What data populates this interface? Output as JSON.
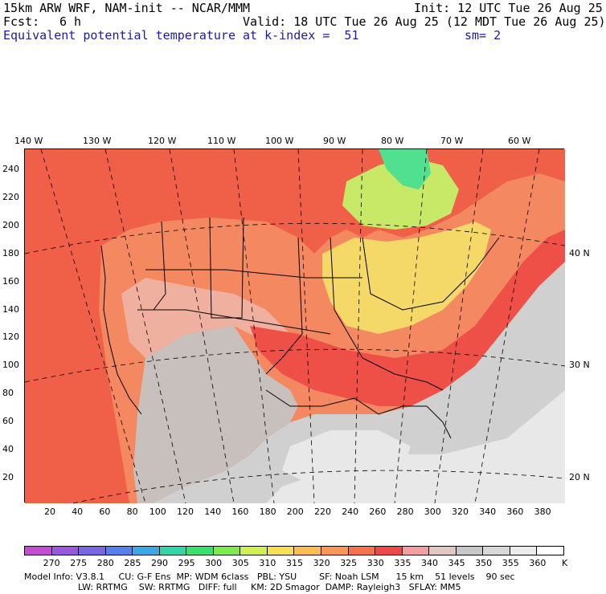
{
  "header": {
    "model_line": "15km ARW WRF, NAM-init -- NCAR/MMM",
    "init": "Init: 12 UTC Tue 26 Aug 25",
    "fcst_label": "Fcst:",
    "fcst_value": "6 h",
    "valid": "Valid: 18 UTC Tue 26 Aug 25 (12 MDT Tue 26 Aug 25)",
    "field": "Equivalent potential temperature",
    "level": "at k-index =  51",
    "smooth": "sm= 2"
  },
  "axes": {
    "top_lon": [
      "140 W",
      "130 W",
      "120 W",
      "110 W",
      "100 W",
      "90 W",
      "80 W",
      "70 W",
      "60 W"
    ],
    "right_lat": [
      "40 N",
      "30 N",
      "20 N"
    ],
    "left_grid": [
      "240",
      "220",
      "200",
      "180",
      "160",
      "140",
      "120",
      "100",
      "80",
      "60",
      "40",
      "20"
    ],
    "bottom_grid": [
      "20",
      "40",
      "60",
      "80",
      "100",
      "120",
      "140",
      "160",
      "180",
      "200",
      "220",
      "240",
      "260",
      "280",
      "300",
      "320",
      "340",
      "360",
      "380"
    ]
  },
  "colorbar": {
    "labels": [
      "270",
      "275",
      "280",
      "285",
      "290",
      "295",
      "300",
      "305",
      "310",
      "315",
      "320",
      "325",
      "330",
      "335",
      "340",
      "345",
      "350",
      "355",
      "360"
    ],
    "unit": "K",
    "colors": [
      "#c050d0",
      "#9858d8",
      "#7868e0",
      "#5880e8",
      "#40a8e0",
      "#30d8a8",
      "#38e070",
      "#80e850",
      "#d0f050",
      "#f8e050",
      "#f8c050",
      "#f89858",
      "#f87050",
      "#f04848",
      "#f0a0a0",
      "#e0c8c0",
      "#c8c8c8",
      "#d8d8d8",
      "#ececec",
      "#ffffff"
    ]
  },
  "footer": {
    "line1": "Model Info: V3.8.1     CU: G-F Ens  MP: WDM 6class   PBL: YSU        SF: Noah LSM      15 km    51 levels    90 sec",
    "line2": "LW: RRTMG    SW: RRTMG   DIFF: full     KM: 2D Smagor  DAMP: Rayleigh3   SFLAY: MM5"
  },
  "map_colors": {
    "ocean": "#f06048",
    "land_warm": "#f48860",
    "land_hot": "#ee5048",
    "land_pink": "#f0b0a0",
    "land_gray": "#c8c0bc",
    "land_yellow": "#f4d868",
    "land_green": "#c8e868",
    "canada_green": "#50e090",
    "ocean_gray": "#d0d0d0",
    "light_gray": "#e8e8e8"
  }
}
